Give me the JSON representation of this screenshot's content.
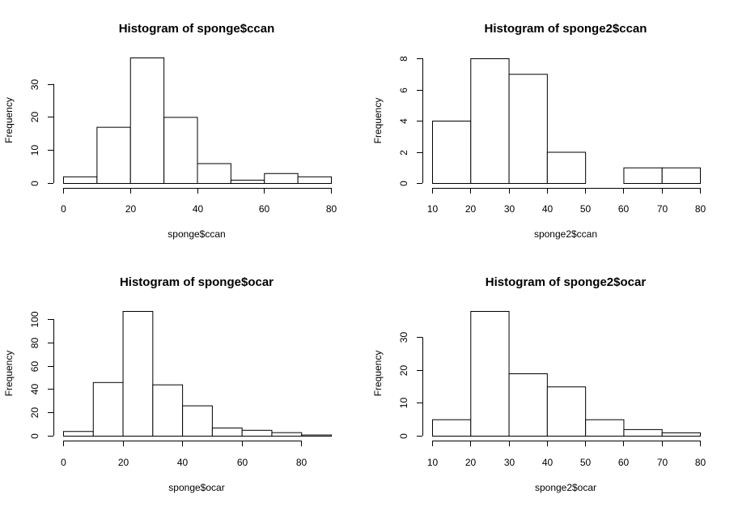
{
  "chart_data": [
    {
      "type": "bar",
      "title": "Histogram of sponge$ccan",
      "xlabel": "sponge$ccan",
      "ylabel": "Frequency",
      "bins": [
        [
          0,
          10
        ],
        [
          10,
          20
        ],
        [
          20,
          30
        ],
        [
          30,
          40
        ],
        [
          40,
          50
        ],
        [
          50,
          60
        ],
        [
          60,
          70
        ],
        [
          70,
          80
        ]
      ],
      "values": [
        2,
        17,
        38,
        20,
        6,
        1,
        3,
        2
      ],
      "xlim": [
        0,
        80
      ],
      "ylim": [
        0,
        38
      ],
      "xticks": [
        0,
        20,
        40,
        60,
        80
      ],
      "yticks": [
        0,
        10,
        20,
        30
      ]
    },
    {
      "type": "bar",
      "title": "Histogram of sponge2$ccan",
      "xlabel": "sponge2$ccan",
      "ylabel": "Frequency",
      "bins": [
        [
          10,
          20
        ],
        [
          20,
          30
        ],
        [
          30,
          40
        ],
        [
          40,
          50
        ],
        [
          50,
          60
        ],
        [
          60,
          70
        ],
        [
          70,
          80
        ]
      ],
      "values": [
        4,
        8,
        7,
        2,
        0,
        1,
        1
      ],
      "xlim": [
        10,
        80
      ],
      "ylim": [
        0,
        8
      ],
      "xticks": [
        10,
        20,
        30,
        40,
        50,
        60,
        70,
        80
      ],
      "yticks": [
        0,
        2,
        4,
        6,
        8
      ]
    },
    {
      "type": "bar",
      "title": "Histogram of sponge$ocar",
      "xlabel": "sponge$ocar",
      "ylabel": "Frequency",
      "bins": [
        [
          0,
          10
        ],
        [
          10,
          20
        ],
        [
          20,
          30
        ],
        [
          30,
          40
        ],
        [
          40,
          50
        ],
        [
          50,
          60
        ],
        [
          60,
          70
        ],
        [
          70,
          80
        ],
        [
          80,
          90
        ]
      ],
      "values": [
        4,
        46,
        107,
        44,
        26,
        7,
        5,
        3,
        1
      ],
      "xlim": [
        0,
        90
      ],
      "ylim": [
        0,
        107
      ],
      "xticks": [
        0,
        20,
        40,
        60,
        80
      ],
      "yticks": [
        0,
        20,
        40,
        60,
        80,
        100
      ]
    },
    {
      "type": "bar",
      "title": "Histogram of sponge2$ocar",
      "xlabel": "sponge2$ocar",
      "ylabel": "Frequency",
      "bins": [
        [
          10,
          20
        ],
        [
          20,
          30
        ],
        [
          30,
          40
        ],
        [
          40,
          50
        ],
        [
          50,
          60
        ],
        [
          60,
          70
        ],
        [
          70,
          80
        ]
      ],
      "values": [
        5,
        38,
        19,
        15,
        5,
        2,
        1
      ],
      "xlim": [
        10,
        80
      ],
      "ylim": [
        0,
        38
      ],
      "xticks": [
        10,
        20,
        30,
        40,
        50,
        60,
        70,
        80
      ],
      "yticks": [
        0,
        10,
        20,
        30
      ]
    }
  ]
}
